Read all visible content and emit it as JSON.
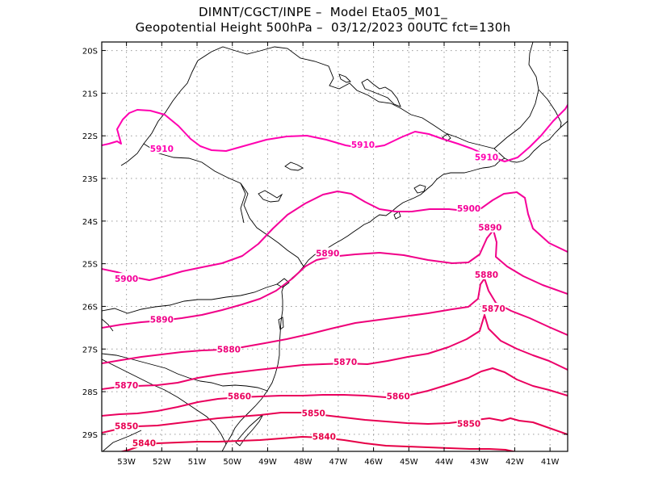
{
  "title": {
    "line1": "DIMNT/CGCT/INPE –  Model Eta05_M01_",
    "line2": "Geopotential Height 500hPa –  03/12/2023 00UTC fct=130h"
  },
  "map": {
    "lon_range": [
      -53.7,
      -40.5
    ],
    "lat_range": [
      -29.4,
      -19.8
    ],
    "lon_ticks": [
      -53,
      -52,
      -51,
      -50,
      -49,
      -48,
      -47,
      -46,
      -45,
      -44,
      -43,
      -42,
      -41
    ],
    "lon_tick_labels": [
      "53W",
      "52W",
      "51W",
      "50W",
      "49W",
      "48W",
      "47W",
      "46W",
      "45W",
      "44W",
      "43W",
      "42W",
      "41W"
    ],
    "lat_ticks": [
      -20,
      -21,
      -22,
      -23,
      -24,
      -25,
      -26,
      -27,
      -28,
      -29
    ],
    "lat_tick_labels": [
      "20S",
      "21S",
      "22S",
      "23S",
      "24S",
      "25S",
      "26S",
      "27S",
      "28S",
      "29S"
    ],
    "contour_colors": {
      "5910": "#ff00b0",
      "5900": "#f5009a",
      "5890": "#f00088",
      "5880": "#ee0078",
      "5870": "#ec006a",
      "5860": "#ea005e",
      "5850": "#e80052",
      "5840": "#e60046"
    },
    "contour_labels": [
      {
        "value": 5910,
        "text": "5910",
        "lon": -52.0,
        "lat": -22.3
      },
      {
        "value": 5910,
        "text": "5910",
        "lon": -46.3,
        "lat": -22.2
      },
      {
        "value": 5910,
        "text": "5910",
        "lon": -42.8,
        "lat": -22.5
      },
      {
        "value": 5900,
        "text": "5900",
        "lon": -53.0,
        "lat": -25.35
      },
      {
        "value": 5900,
        "text": "5900",
        "lon": -43.3,
        "lat": -23.7
      },
      {
        "value": 5890,
        "text": "5890",
        "lon": -52.0,
        "lat": -26.3
      },
      {
        "value": 5890,
        "text": "5890",
        "lon": -47.3,
        "lat": -24.75
      },
      {
        "value": 5890,
        "text": "5890",
        "lon": -42.7,
        "lat": -24.15
      },
      {
        "value": 5880,
        "text": "5880",
        "lon": -50.1,
        "lat": -27.0
      },
      {
        "value": 5880,
        "text": "5880",
        "lon": -42.8,
        "lat": -25.25
      },
      {
        "value": 5870,
        "text": "5870",
        "lon": -53.0,
        "lat": -27.85
      },
      {
        "value": 5870,
        "text": "5870",
        "lon": -46.8,
        "lat": -27.3
      },
      {
        "value": 5870,
        "text": "5870",
        "lon": -42.6,
        "lat": -26.05
      },
      {
        "value": 5860,
        "text": "5860",
        "lon": -49.8,
        "lat": -28.1
      },
      {
        "value": 5860,
        "text": "5860",
        "lon": -45.3,
        "lat": -28.1
      },
      {
        "value": 5850,
        "text": "5850",
        "lon": -53.0,
        "lat": -28.8
      },
      {
        "value": 5850,
        "text": "5850",
        "lon": -47.7,
        "lat": -28.5
      },
      {
        "value": 5850,
        "text": "5850",
        "lon": -43.3,
        "lat": -28.75
      },
      {
        "value": 5840,
        "text": "5840",
        "lon": -52.5,
        "lat": -29.2
      },
      {
        "value": 5840,
        "text": "5840",
        "lon": -47.4,
        "lat": -29.05
      }
    ]
  }
}
